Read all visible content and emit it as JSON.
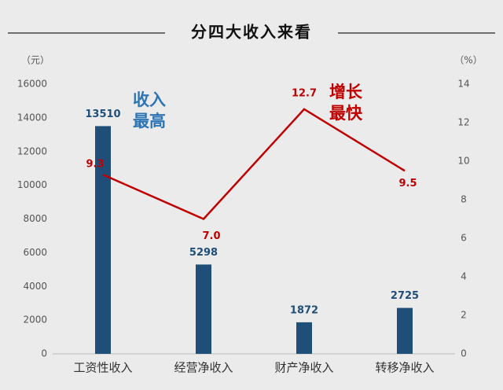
{
  "chart_data": {
    "type": "bar-line",
    "title": "分四大收入来看",
    "y_label": "（元）",
    "y2_label": "（%）",
    "categories": [
      "工资性收入",
      "经营净收入",
      "财产净收入",
      "转移净收入"
    ],
    "series": [
      {
        "type": "bar",
        "color": "#1f4e79",
        "values": [
          13510,
          5298,
          1872,
          2725
        ]
      },
      {
        "type": "line",
        "axis": "y2",
        "color": "#c00000",
        "values": [
          9.3,
          7.0,
          12.7,
          9.5
        ],
        "value_labels": [
          "9.3",
          "7.0",
          "12.7",
          "9.5"
        ]
      }
    ],
    "ylim": [
      0,
      16000
    ],
    "yticks": [
      0,
      2000,
      4000,
      6000,
      8000,
      10000,
      12000,
      14000,
      16000
    ],
    "y2lim": [
      0,
      14
    ],
    "y2ticks": [
      0,
      2,
      4,
      6,
      8,
      10,
      12,
      14
    ],
    "annotations": [
      {
        "lines": [
          "收入",
          "最高"
        ],
        "color": "#2e75b6"
      },
      {
        "lines": [
          "增长",
          "最快"
        ],
        "color": "#c00000"
      }
    ]
  }
}
